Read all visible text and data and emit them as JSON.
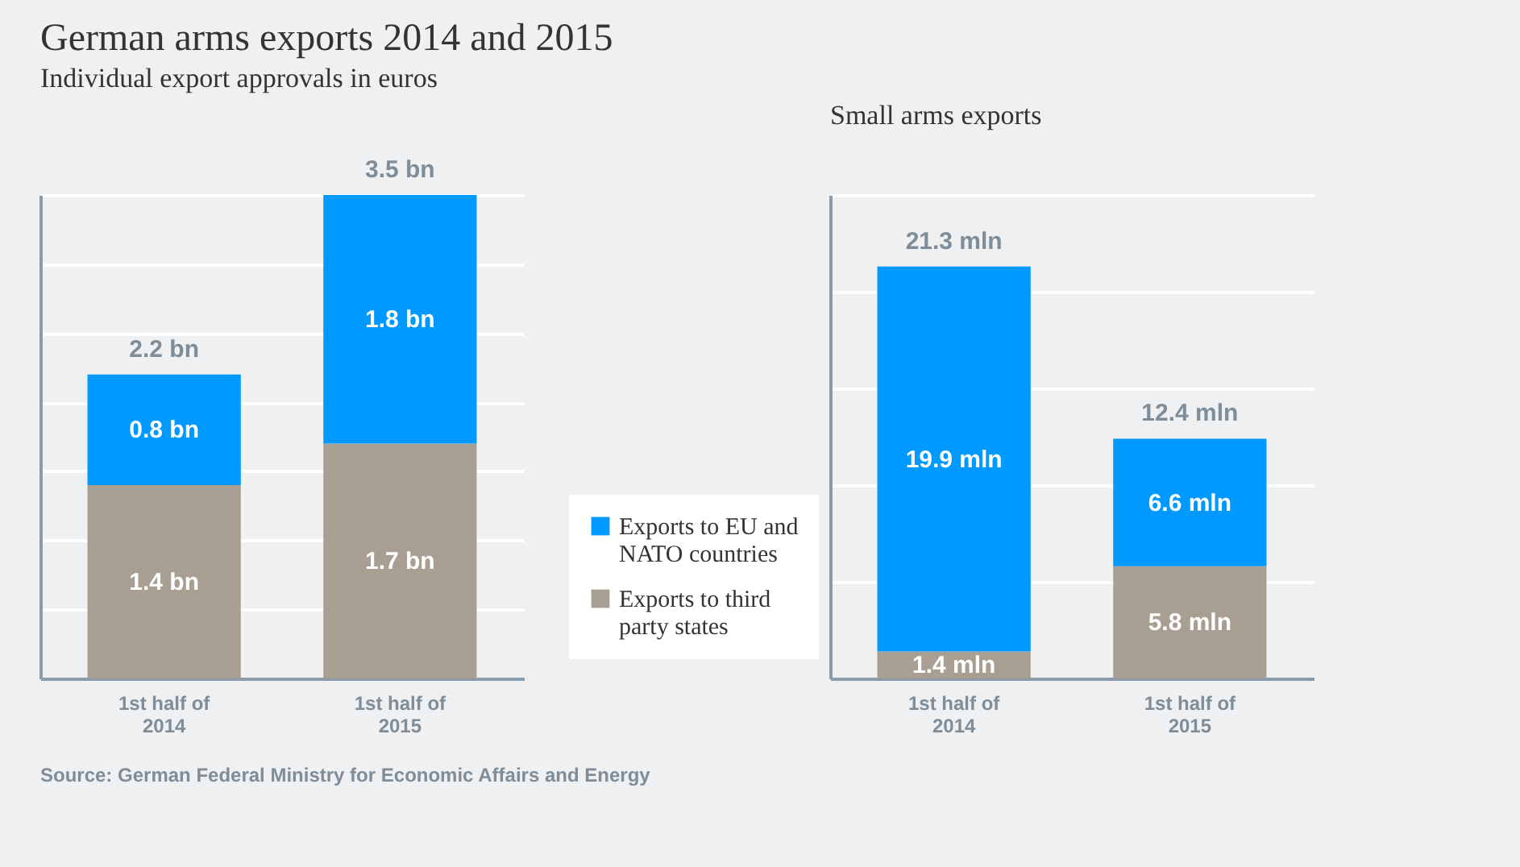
{
  "chart_data": [
    {
      "type": "bar",
      "title": "German arms exports 2014 and 2015",
      "subtitle": "Individual export approvals in euros",
      "categories": [
        "1st half of 2014",
        "1st half of 2015"
      ],
      "stacked": true,
      "series": [
        {
          "name": "Exports to third party states",
          "color": "#a89f92",
          "values": [
            1.4,
            1.7
          ],
          "value_labels": [
            "1.4 bn",
            "1.7 bn"
          ]
        },
        {
          "name": "Exports to EU and NATO countries",
          "color": "#0099ff",
          "values": [
            0.8,
            1.8
          ],
          "value_labels": [
            "0.8 bn",
            "1.8 bn"
          ]
        }
      ],
      "totals": [
        "2.2 bn",
        "3.5 bn"
      ],
      "ylim": [
        0,
        3.5
      ],
      "yticks": [
        {
          "value": 0,
          "label": null
        },
        {
          "value": 0.5,
          "label": null
        },
        {
          "value": 1,
          "label": null
        },
        {
          "value": 1.5,
          "label": null
        },
        {
          "value": 2,
          "label": null
        },
        {
          "value": 2.5,
          "label": null
        },
        {
          "value": 3,
          "label": null
        },
        {
          "value": 3.5,
          "label": null
        }
      ],
      "grid": "y",
      "tick_labels": "x",
      "legend": "right",
      "annotations": [
        "Source: German Federal Ministry for Economic Affairs and Energy"
      ]
    },
    {
      "type": "bar",
      "subtitle": "Small arms exports",
      "categories": [
        "1st half of 2014",
        "1st half of 2015"
      ],
      "stacked": true,
      "series": [
        {
          "color": "#a89f92",
          "values": [
            1.4,
            5.8
          ],
          "value_labels": [
            "1.4 mln",
            "5.8 mln"
          ]
        },
        {
          "color": "#0099ff",
          "values": [
            19.9,
            6.6
          ],
          "value_labels": [
            "19.9 mln",
            "6.6 mln"
          ]
        }
      ],
      "totals": [
        "21.3 mln",
        "12.4 mln"
      ],
      "ylim": [
        0,
        25
      ],
      "yticks": [
        {
          "value": 0,
          "label": null
        },
        {
          "value": 5,
          "label": null
        },
        {
          "value": 10,
          "label": null
        },
        {
          "value": 15,
          "label": null
        },
        {
          "value": 20,
          "label": null
        },
        {
          "value": 25,
          "label": null
        }
      ],
      "grid": "y",
      "tick_labels": "x"
    }
  ]
}
